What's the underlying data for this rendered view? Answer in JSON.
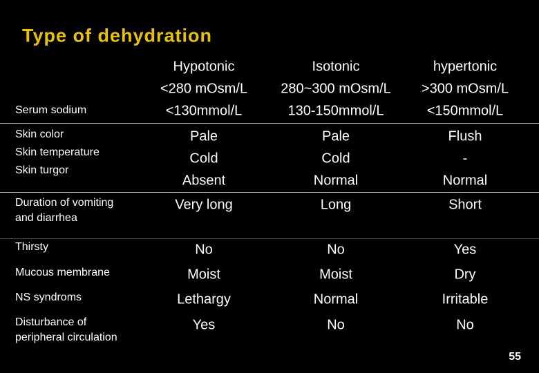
{
  "title": "Type of dehydration",
  "table": {
    "rows": [
      {
        "label": [
          "Serum sodium"
        ],
        "cells": [
          [
            "Hypotonic",
            "<280 mOsm/L",
            "<130mmol/L"
          ],
          [
            "Isotonic",
            "280~300 mOsm/L",
            "130-150mmol/L"
          ],
          [
            "hypertonic",
            ">300 mOsm/L",
            "<150mmol/L"
          ]
        ]
      },
      {
        "label": [
          "Skin color",
          "Skin temperature",
          "Skin turgor"
        ],
        "cells": [
          [
            "Pale",
            "Cold",
            "Absent"
          ],
          [
            "Pale",
            "Cold",
            "Normal"
          ],
          [
            "Flush",
            "-",
            "Normal"
          ]
        ]
      },
      {
        "label": [
          "Duration of vomiting",
          "and diarrhea"
        ],
        "cells": [
          [
            "Very long"
          ],
          [
            "Long"
          ],
          [
            "Short"
          ]
        ]
      },
      {
        "label": [
          "Thirsty"
        ],
        "cells": [
          [
            "No"
          ],
          [
            "No"
          ],
          [
            "Yes"
          ]
        ]
      },
      {
        "label": [
          "Mucous membrane"
        ],
        "cells": [
          [
            "Moist"
          ],
          [
            "Moist"
          ],
          [
            "Dry"
          ]
        ]
      },
      {
        "label": [
          "NS syndroms"
        ],
        "cells": [
          [
            "Lethargy"
          ],
          [
            "Normal"
          ],
          [
            "Irritable"
          ]
        ]
      },
      {
        "label": [
          "Disturbance of",
          "peripheral circulation"
        ],
        "cells": [
          [
            "Yes"
          ],
          [
            "No"
          ],
          [
            "No"
          ]
        ]
      }
    ]
  },
  "page_number": "55"
}
